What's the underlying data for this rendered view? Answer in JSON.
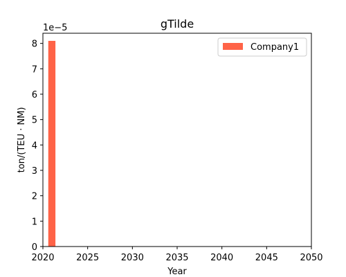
{
  "chart_data": {
    "type": "bar",
    "title": "gTilde",
    "xlabel": "Year",
    "ylabel": "ton/(TEU · NM)",
    "y_scale_label": "1e−5",
    "xlim": [
      2020,
      2050
    ],
    "ylim": [
      0,
      8.4
    ],
    "x_ticks": [
      2020,
      2025,
      2030,
      2035,
      2040,
      2045,
      2050
    ],
    "y_ticks": [
      0,
      1,
      2,
      3,
      4,
      5,
      6,
      7,
      8
    ],
    "bar_width": 0.8,
    "series": [
      {
        "name": "Company1",
        "color": "#ff6347",
        "x": [
          2021
        ],
        "values": [
          8.1
        ]
      }
    ],
    "legend_position": "top-right",
    "grid": false
  }
}
